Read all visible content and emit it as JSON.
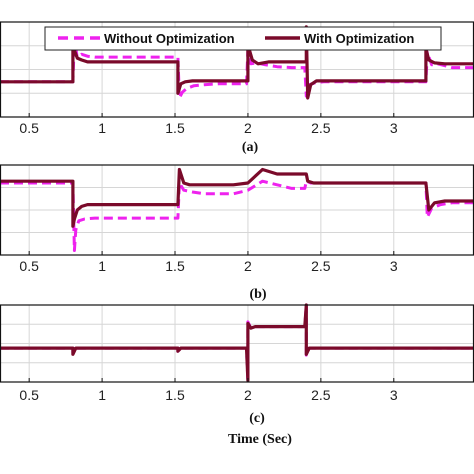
{
  "colors": {
    "without": "#ee22ee",
    "with": "#7a0a2a",
    "grid": "#d6d6d6"
  },
  "chart_data": [
    {
      "type": "line",
      "label": "(a)",
      "xlim": [
        0.3,
        3.55
      ],
      "ylim": [
        0,
        1
      ],
      "xticks": [
        0.5,
        1,
        1.5,
        2,
        2.5,
        3
      ],
      "xtick_labels": [
        "0.5",
        "1",
        "1.5",
        "2",
        "2.5",
        "3"
      ],
      "legend": {
        "position": "top-right",
        "entries": [
          "Without Optimization",
          "With Optimization"
        ]
      },
      "series": [
        {
          "name": "Without Optimization",
          "x": [
            0.3,
            0.8,
            0.81,
            0.83,
            0.86,
            0.9,
            0.95,
            1.0,
            1.3,
            1.52,
            1.53,
            1.55,
            1.58,
            1.63,
            1.7,
            1.8,
            1.99,
            2.0,
            2.02,
            2.06,
            2.12,
            2.2,
            2.3,
            2.39,
            2.4,
            2.42,
            2.46,
            2.52,
            2.6,
            3.0,
            3.22,
            3.23,
            3.26,
            3.3,
            3.4,
            3.55
          ],
          "y": [
            0.37,
            0.37,
            0.82,
            0.62,
            0.66,
            0.64,
            0.63,
            0.63,
            0.63,
            0.63,
            0.2,
            0.26,
            0.3,
            0.33,
            0.34,
            0.35,
            0.35,
            0.7,
            0.56,
            0.57,
            0.55,
            0.53,
            0.52,
            0.52,
            0.22,
            0.34,
            0.36,
            0.37,
            0.37,
            0.37,
            0.37,
            0.68,
            0.55,
            0.56,
            0.52,
            0.52
          ]
        },
        {
          "name": "With Optimization",
          "x": [
            0.3,
            0.8,
            0.8,
            0.81,
            0.83,
            0.86,
            0.9,
            1.0,
            1.3,
            1.52,
            1.52,
            1.54,
            1.57,
            1.62,
            1.7,
            1.8,
            1.99,
            2.0,
            2.0,
            2.03,
            2.07,
            2.14,
            2.25,
            2.39,
            2.4,
            2.4,
            2.41,
            2.43,
            2.47,
            2.6,
            3.0,
            3.22,
            3.22,
            3.24,
            3.28,
            3.35,
            3.55
          ],
          "y": [
            0.37,
            0.37,
            0.92,
            0.7,
            0.62,
            0.6,
            0.58,
            0.58,
            0.58,
            0.58,
            0.25,
            0.35,
            0.37,
            0.38,
            0.38,
            0.38,
            0.38,
            0.38,
            0.76,
            0.6,
            0.56,
            0.58,
            0.58,
            0.58,
            0.58,
            0.95,
            0.2,
            0.34,
            0.38,
            0.38,
            0.38,
            0.38,
            0.72,
            0.6,
            0.57,
            0.56,
            0.56
          ]
        }
      ]
    },
    {
      "type": "line",
      "label": "(b)",
      "xlim": [
        0.3,
        3.55
      ],
      "ylim": [
        0,
        1
      ],
      "xticks": [
        0.5,
        1,
        1.5,
        2,
        2.5,
        3
      ],
      "xtick_labels": [
        "0.5",
        "1",
        "1.5",
        "2",
        "2.5",
        "3"
      ],
      "series": [
        {
          "name": "Without Optimization",
          "x": [
            0.3,
            0.8,
            0.81,
            0.82,
            0.84,
            0.88,
            0.95,
            1.0,
            1.3,
            1.52,
            1.53,
            1.56,
            1.62,
            1.7,
            1.8,
            1.9,
            2.0,
            2.1,
            2.2,
            2.3,
            2.39,
            2.4,
            2.43,
            2.48,
            2.6,
            3.0,
            3.22,
            3.23,
            3.26,
            3.32,
            3.4,
            3.55
          ],
          "y": [
            0.8,
            0.8,
            0.05,
            0.28,
            0.38,
            0.4,
            0.41,
            0.41,
            0.41,
            0.41,
            0.8,
            0.72,
            0.7,
            0.68,
            0.68,
            0.68,
            0.72,
            0.82,
            0.78,
            0.74,
            0.74,
            0.82,
            0.8,
            0.8,
            0.8,
            0.8,
            0.8,
            0.42,
            0.52,
            0.56,
            0.58,
            0.58
          ]
        },
        {
          "name": "With Optimization",
          "x": [
            0.3,
            0.8,
            0.8,
            0.81,
            0.83,
            0.86,
            0.9,
            1.0,
            1.3,
            1.52,
            1.52,
            1.53,
            1.56,
            1.6,
            1.7,
            1.8,
            1.9,
            2.0,
            2.1,
            2.2,
            2.3,
            2.39,
            2.4,
            2.41,
            2.45,
            2.6,
            3.0,
            3.22,
            3.22,
            3.24,
            3.28,
            3.35,
            3.55
          ],
          "y": [
            0.82,
            0.82,
            0.32,
            0.4,
            0.5,
            0.54,
            0.56,
            0.56,
            0.56,
            0.56,
            0.56,
            0.95,
            0.8,
            0.78,
            0.78,
            0.78,
            0.78,
            0.8,
            0.95,
            0.9,
            0.9,
            0.9,
            0.9,
            0.82,
            0.8,
            0.8,
            0.8,
            0.8,
            0.8,
            0.5,
            0.58,
            0.6,
            0.6
          ]
        }
      ]
    },
    {
      "type": "line",
      "label": "(c)",
      "xlim": [
        0.3,
        3.55
      ],
      "ylim": [
        0,
        1
      ],
      "xticks": [
        0.5,
        1,
        1.5,
        2,
        2.5,
        3
      ],
      "xtick_labels": [
        "0.5",
        "1",
        "1.5",
        "2",
        "2.5",
        "3"
      ],
      "xlabel": "Time (Sec)",
      "series": [
        {
          "name": "Without Optimization",
          "x": [
            0.3,
            0.8,
            0.8,
            0.82,
            1.52,
            1.52,
            1.54,
            1.99,
            2.0,
            2.0,
            2.02,
            2.05,
            2.2,
            2.39,
            2.4,
            2.4,
            2.42,
            2.5,
            3.55
          ],
          "y": [
            0.44,
            0.44,
            0.38,
            0.44,
            0.44,
            0.4,
            0.44,
            0.44,
            0.0,
            0.78,
            0.7,
            0.72,
            0.72,
            0.72,
            1.0,
            0.35,
            0.44,
            0.44,
            0.44
          ]
        },
        {
          "name": "With Optimization",
          "x": [
            0.3,
            0.8,
            0.8,
            0.82,
            1.52,
            1.52,
            1.54,
            1.99,
            2.0,
            2.0,
            2.02,
            2.05,
            2.2,
            2.39,
            2.4,
            2.4,
            2.42,
            2.5,
            3.55
          ],
          "y": [
            0.44,
            0.44,
            0.36,
            0.44,
            0.44,
            0.4,
            0.44,
            0.44,
            0.02,
            0.76,
            0.7,
            0.72,
            0.72,
            0.72,
            1.0,
            0.36,
            0.44,
            0.44,
            0.44
          ]
        }
      ]
    }
  ]
}
